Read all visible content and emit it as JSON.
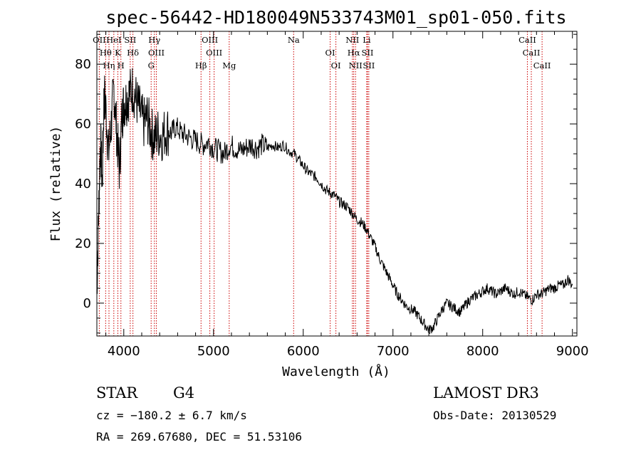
{
  "chart_data": {
    "type": "line",
    "title": "spec-56442-HD180049N533743M01_sp01-050.fits",
    "xlabel": "Wavelength (Å)",
    "ylabel": "Flux (relative)",
    "xlim": [
      3700,
      9050
    ],
    "ylim": [
      -11,
      91
    ],
    "x_ticks": [
      "4000",
      "5000",
      "6000",
      "7000",
      "8000",
      "9000"
    ],
    "y_ticks": [
      "0",
      "20",
      "40",
      "60",
      "80"
    ],
    "spectrum": {
      "x": [
        3700,
        3720,
        3740,
        3760,
        3780,
        3800,
        3830,
        3860,
        3890,
        3920,
        3950,
        3980,
        4000,
        4030,
        4060,
        4100,
        4140,
        4180,
        4220,
        4260,
        4300,
        4340,
        4380,
        4430,
        4480,
        4530,
        4580,
        4640,
        4700,
        4760,
        4820,
        4880,
        4940,
        5000,
        5060,
        5120,
        5180,
        5240,
        5300,
        5360,
        5420,
        5480,
        5540,
        5600,
        5660,
        5720,
        5780,
        5840,
        5900,
        5950,
        6000,
        6050,
        6100,
        6150,
        6200,
        6250,
        6300,
        6350,
        6400,
        6450,
        6500,
        6550,
        6600,
        6650,
        6700,
        6750,
        6800,
        6850,
        6900,
        6950,
        7000,
        7050,
        7100,
        7150,
        7200,
        7250,
        7300,
        7350,
        7400,
        7450,
        7500,
        7550,
        7600,
        7650,
        7700,
        7750,
        7800,
        7850,
        7900,
        7950,
        8000,
        8050,
        8100,
        8150,
        8200,
        8250,
        8300,
        8350,
        8400,
        8450,
        8500,
        8550,
        8600,
        8650,
        8700,
        8750,
        8800,
        8850,
        8900,
        8950,
        9000
      ],
      "y": [
        5,
        30,
        55,
        40,
        70,
        65,
        50,
        60,
        72,
        58,
        45,
        62,
        67,
        68,
        70,
        72,
        68,
        64,
        60,
        62,
        58,
        55,
        57,
        56,
        58,
        57,
        59,
        57,
        56,
        55,
        54,
        53,
        54,
        52,
        51,
        50,
        53,
        52,
        51,
        52,
        53,
        52,
        53,
        52,
        53,
        52,
        53,
        51,
        50,
        48,
        46,
        44,
        43,
        42,
        40,
        38,
        37,
        36,
        34,
        33,
        32,
        30,
        28,
        27,
        25,
        22,
        19,
        15,
        12,
        9,
        6,
        3,
        1,
        -1,
        -2,
        -3,
        -5,
        -7,
        -9,
        -8,
        -5,
        -2,
        0,
        -1,
        -2,
        -3,
        -1,
        1,
        2,
        3,
        4,
        5,
        4,
        3,
        4,
        5,
        4,
        3,
        4,
        3,
        2,
        1,
        3,
        3,
        4,
        5,
        5,
        6,
        6,
        8,
        6
      ]
    },
    "spectral_lines": [
      {
        "label": "OII",
        "x": 3727
      },
      {
        "label": "Hθ",
        "x": 3798
      },
      {
        "label": "Hη",
        "x": 3835
      },
      {
        "label": "HeI",
        "x": 3889
      },
      {
        "label": "K",
        "x": 3934
      },
      {
        "label": "H",
        "x": 3968
      },
      {
        "label": "SII",
        "x": 4072
      },
      {
        "label": "Hδ",
        "x": 4102
      },
      {
        "label": "G",
        "x": 4305
      },
      {
        "label": "Hγ",
        "x": 4341
      },
      {
        "label": "OIII",
        "x": 4363
      },
      {
        "label": "Hβ",
        "x": 4861
      },
      {
        "label": "OIII",
        "x": 4959
      },
      {
        "label": "OIII",
        "x": 5007
      },
      {
        "label": "Mg",
        "x": 5175
      },
      {
        "label": "Na",
        "x": 5893
      },
      {
        "label": "OI",
        "x": 6300
      },
      {
        "label": "OI",
        "x": 6364
      },
      {
        "label": "NII",
        "x": 6548
      },
      {
        "label": "Hα",
        "x": 6563
      },
      {
        "label": "NII",
        "x": 6583
      },
      {
        "label": "Li",
        "x": 6708
      },
      {
        "label": "SII",
        "x": 6716
      },
      {
        "label": "SII",
        "x": 6731
      },
      {
        "label": "CaII",
        "x": 8498
      },
      {
        "label": "CaII",
        "x": 8542
      },
      {
        "label": "CaII",
        "x": 8662
      }
    ],
    "colors": {
      "spectrum": "#000000",
      "lines": "#cc0000",
      "axes": "#000000"
    }
  },
  "info": {
    "class_label": "STAR",
    "subclass": "G4",
    "survey": "LAMOST DR3",
    "cz": "cz = −180.2 ± 6.7 km/s",
    "obs_date": "Obs-Date: 20130529",
    "coords": "RA = 269.67680, DEC =  51.53106"
  }
}
